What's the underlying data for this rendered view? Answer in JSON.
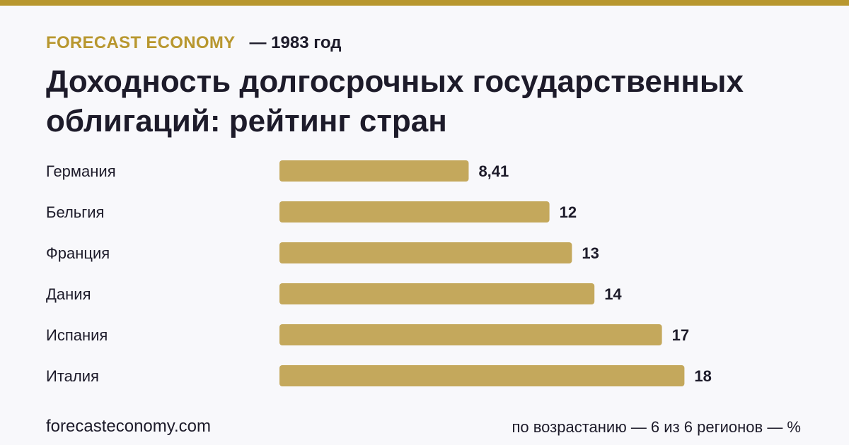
{
  "header": {
    "brand": "FORECAST ECONOMY",
    "period": "— 1983 год"
  },
  "accent_color": "#b8972f",
  "bar_color": "#c4a85c",
  "chart_data": {
    "type": "bar",
    "orientation": "horizontal",
    "title": "Доходность долгосрочных государственных облигаций: рейтинг стран",
    "categories": [
      "Германия",
      "Бельгия",
      "Франция",
      "Дания",
      "Испания",
      "Италия"
    ],
    "values": [
      8.41,
      12,
      13,
      14,
      17,
      18
    ],
    "value_labels": [
      "8,41",
      "12",
      "13",
      "14",
      "17",
      "18"
    ],
    "xlabel": "",
    "ylabel": "",
    "grid": false,
    "legend": "none"
  },
  "footer": {
    "site": "forecasteconomy.com",
    "note": "по возрастанию — 6 из 6 регионов — %"
  }
}
